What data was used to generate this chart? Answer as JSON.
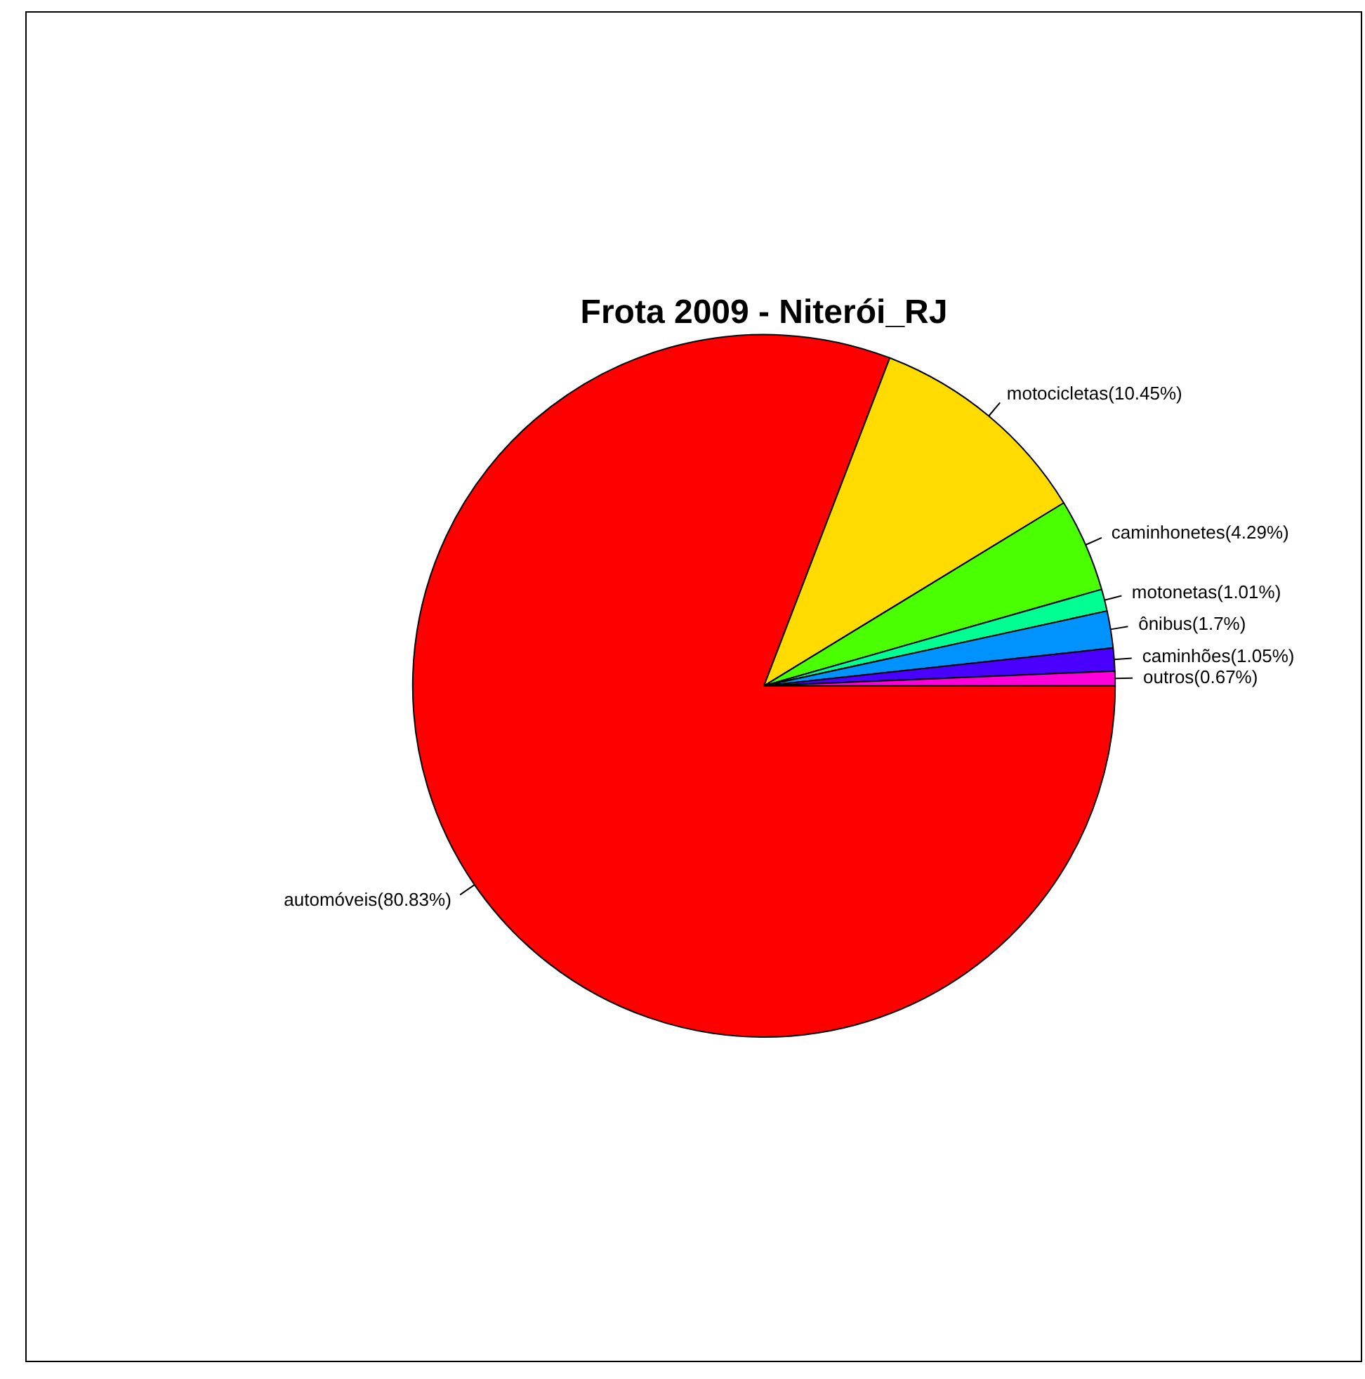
{
  "chart_data": {
    "type": "pie",
    "title": "Frota 2009 - Niterói_RJ",
    "categories": [
      "automóveis(80.83%)",
      "motocicletas(10.45%)",
      "caminhonetes(4.29%)",
      "motonetas(1.01%)",
      "ônibus(1.7%)",
      "caminhões(1.05%)",
      "outros(0.67%)"
    ],
    "values": [
      80.83,
      10.45,
      4.29,
      1.01,
      1.7,
      1.05,
      0.67
    ],
    "colors": [
      "#ff0000",
      "#ffdb00",
      "#49ff00",
      "#00ff92",
      "#0092ff",
      "#4900ff",
      "#ff00db"
    ],
    "legend": false
  }
}
